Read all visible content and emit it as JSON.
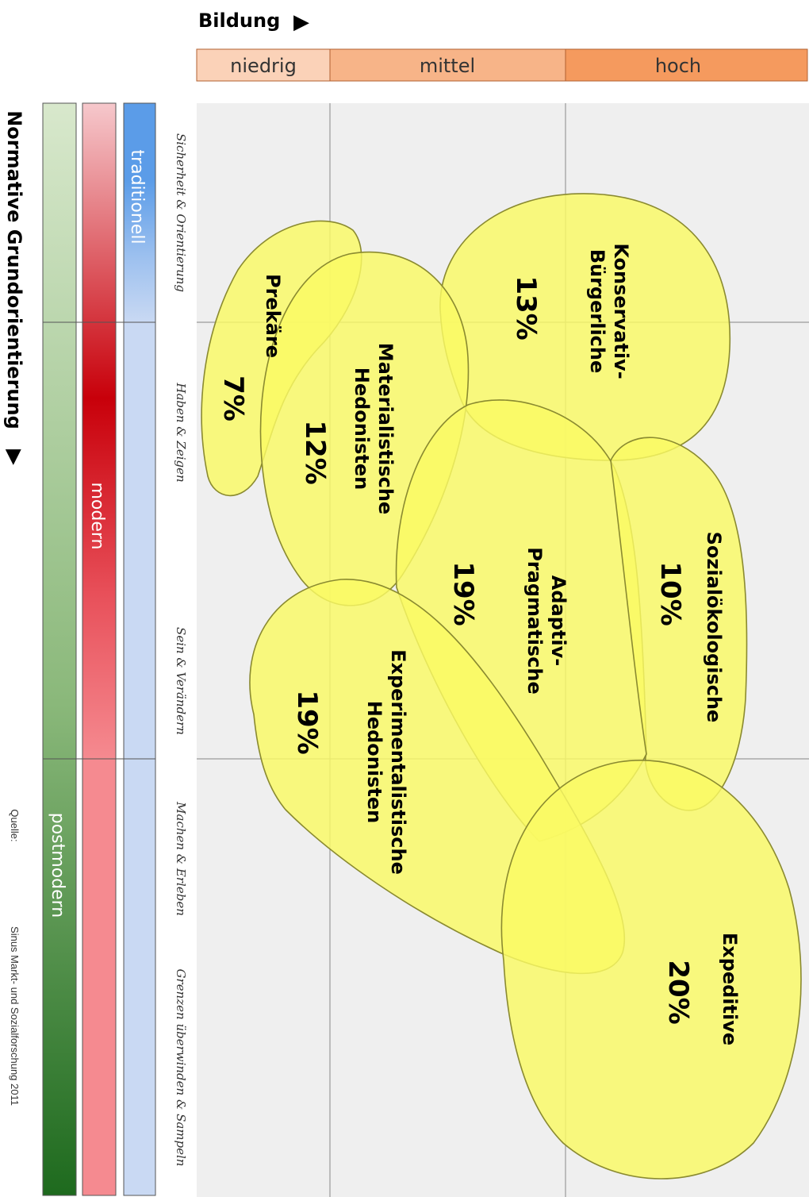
{
  "bildung": {
    "title": "Bildung",
    "arrow": "▶",
    "levels": [
      "niedrig",
      "mittel",
      "hoch"
    ],
    "colors": [
      "#fbd2b8",
      "#f7b488",
      "#f59a5e"
    ]
  },
  "orientation": {
    "title": "Normative Grundorientierung",
    "arrow": "▶",
    "bars": [
      {
        "label": "traditionell",
        "color": "#5b9ce8"
      },
      {
        "label": "modern",
        "color": "#c8000a"
      },
      {
        "label": "postmodern",
        "color": "#4f9a40"
      }
    ]
  },
  "values": [
    "Sicherheit & Orientierung",
    "Haben & Zeigen",
    "Sein & Verändern",
    "Machen & Erleben",
    "Grenzen überwinden & Sampeln"
  ],
  "milieus": [
    {
      "name_lines": [
        "Konservativ-",
        "Bürgerliche"
      ],
      "percent": "13%"
    },
    {
      "name_lines": [
        "Prekäre"
      ],
      "percent": "7%"
    },
    {
      "name_lines": [
        "Materialistische",
        "Hedonisten"
      ],
      "percent": "12%"
    },
    {
      "name_lines": [
        "Adaptiv-",
        "Pragmatische"
      ],
      "percent": "19%"
    },
    {
      "name_lines": [
        "Sozialökologische"
      ],
      "percent": "10%"
    },
    {
      "name_lines": [
        "Experimentalistische",
        "Hedonisten"
      ],
      "percent": "19%"
    },
    {
      "name_lines": [
        "Expeditive"
      ],
      "percent": "20%"
    }
  ],
  "source": {
    "label": "Quelle:",
    "text": "Sinus Markt- und Sozialforschung 2011"
  },
  "colors": {
    "blob_fill": "#fafa64",
    "blob_stroke": "#8a8a30",
    "grid_bg": "#efefef",
    "grid_line": "#9a9a9a"
  }
}
